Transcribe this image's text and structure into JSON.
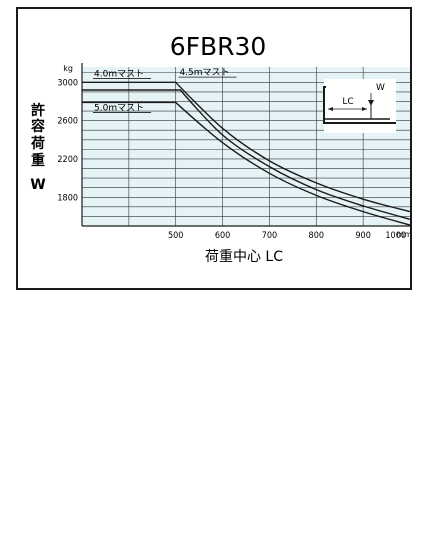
{
  "chart_data": {
    "type": "line",
    "title": "6FBR30",
    "ylabel": "許容荷重W",
    "ylabel_chars": [
      "許",
      "容",
      "荷",
      "重",
      "W"
    ],
    "y_unit": "kg",
    "xlabel": "荷重中心 LC",
    "x_unit": "mm",
    "xlim": [
      300,
      1000
    ],
    "ylim": [
      1500,
      3160
    ],
    "xticks": [
      500,
      600,
      700,
      800,
      900,
      1000
    ],
    "xtick_labels": [
      "500",
      "600",
      "700",
      "800",
      "900",
      "1000"
    ],
    "yticks": [
      1800,
      2200,
      2600,
      3000
    ],
    "ytick_labels": [
      "1800",
      "2200",
      "2600",
      "3000"
    ],
    "grid": true,
    "series": [
      {
        "name": "4.0mマスト",
        "x": [
          300,
          500,
          600,
          700,
          800,
          900,
          1000
        ],
        "y": [
          3000,
          3000,
          2520,
          2180,
          1950,
          1780,
          1650
        ]
      },
      {
        "name": "4.5mマスト",
        "x": [
          300,
          510,
          600,
          700,
          800,
          900,
          1000
        ],
        "y": [
          2920,
          2920,
          2450,
          2120,
          1880,
          1710,
          1570
        ]
      },
      {
        "name": "5.0mマスト",
        "x": [
          300,
          500,
          600,
          700,
          800,
          900,
          1000
        ],
        "y": [
          2790,
          2790,
          2370,
          2050,
          1820,
          1650,
          1510
        ]
      }
    ],
    "inset": {
      "lc_label": "LC",
      "w_label": "W"
    }
  }
}
